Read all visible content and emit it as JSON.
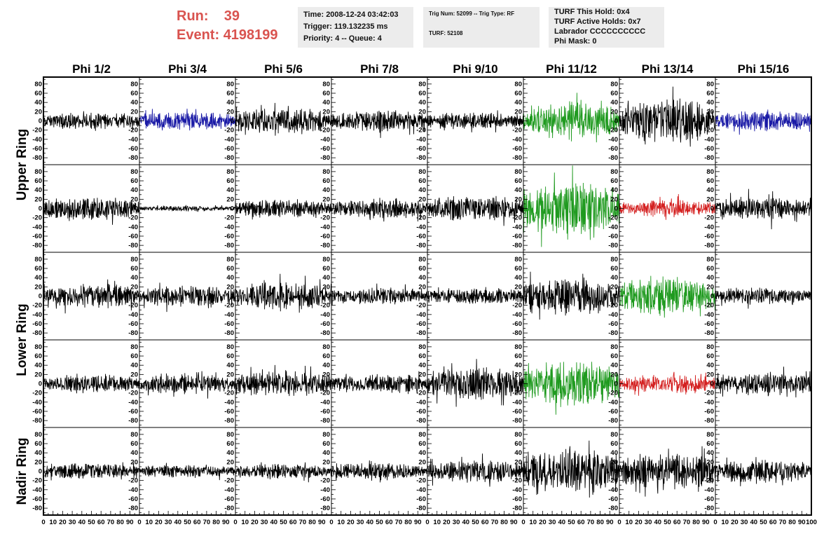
{
  "header": {
    "run_label": "Run:",
    "run_value": "39",
    "event_label": "Event:",
    "event_value": "4198199"
  },
  "info_panels": [
    {
      "lines": [
        "Time: 2008-12-24 03:42:03",
        "Trigger: 119.132235 ms",
        "Priority: 4 -- Queue: 4"
      ]
    },
    {
      "lines": [
        "Trig Num: 52099 -- Trig Type: RF",
        "",
        "TURF: 52108"
      ]
    },
    {
      "lines": [
        "TURF This Hold: 0x4",
        "TURF Active Holds: 0x7",
        "Labrador CCCCCCCCCC",
        "Phi Mask: 0"
      ]
    }
  ],
  "colors": {
    "black": "#000000",
    "blue": "#1a1aa6",
    "green": "#1f9a1f",
    "red": "#d42020"
  },
  "chart_data": {
    "type": "line",
    "columns": [
      "Phi 1/2",
      "Phi 3/4",
      "Phi 5/6",
      "Phi 7/8",
      "Phi 9/10",
      "Phi 11/12",
      "Phi 13/14",
      "Phi 15/16"
    ],
    "row_groups": [
      {
        "label": "Upper Ring",
        "rows": [
          0,
          1
        ]
      },
      {
        "label": "Lower Ring",
        "rows": [
          2,
          3
        ]
      },
      {
        "label": "Nadir Ring",
        "rows": [
          4
        ]
      }
    ],
    "ylim": [
      -95,
      95
    ],
    "xlim": [
      0,
      100
    ],
    "yticks": [
      -80,
      -60,
      -40,
      -20,
      0,
      20,
      40,
      60,
      80
    ],
    "xticks": [
      0,
      10,
      20,
      30,
      40,
      50,
      60,
      70,
      80,
      90,
      100
    ],
    "ytick_labels": [
      "-80",
      "-60",
      "-40",
      "-20",
      "0",
      "20",
      "40",
      "60",
      "80"
    ],
    "xtick_labels": [
      "0",
      "10",
      "20",
      "30",
      "40",
      "50",
      "60",
      "70",
      "80",
      "90",
      "100"
    ],
    "waveforms": [
      {
        "row": 0,
        "col": 0,
        "color": "black",
        "amplitude": 18
      },
      {
        "row": 0,
        "col": 1,
        "color": "blue",
        "amplitude": 20
      },
      {
        "row": 0,
        "col": 2,
        "color": "black",
        "amplitude": 28
      },
      {
        "row": 0,
        "col": 3,
        "color": "black",
        "amplitude": 22
      },
      {
        "row": 0,
        "col": 4,
        "color": "black",
        "amplitude": 18
      },
      {
        "row": 0,
        "col": 5,
        "color": "green",
        "amplitude": 40
      },
      {
        "row": 0,
        "col": 6,
        "color": "black",
        "amplitude": 45
      },
      {
        "row": 0,
        "col": 7,
        "color": "blue",
        "amplitude": 22
      },
      {
        "row": 1,
        "col": 0,
        "color": "black",
        "amplitude": 25
      },
      {
        "row": 1,
        "col": 1,
        "color": "black",
        "amplitude": 6
      },
      {
        "row": 1,
        "col": 2,
        "color": "black",
        "amplitude": 20
      },
      {
        "row": 1,
        "col": 3,
        "color": "black",
        "amplitude": 22
      },
      {
        "row": 1,
        "col": 4,
        "color": "black",
        "amplitude": 28
      },
      {
        "row": 1,
        "col": 5,
        "color": "green",
        "amplitude": 55
      },
      {
        "row": 1,
        "col": 6,
        "color": "red",
        "amplitude": 18
      },
      {
        "row": 1,
        "col": 7,
        "color": "black",
        "amplitude": 25
      },
      {
        "row": 2,
        "col": 0,
        "color": "black",
        "amplitude": 25
      },
      {
        "row": 2,
        "col": 1,
        "color": "black",
        "amplitude": 22
      },
      {
        "row": 2,
        "col": 2,
        "color": "black",
        "amplitude": 30
      },
      {
        "row": 2,
        "col": 3,
        "color": "black",
        "amplitude": 18
      },
      {
        "row": 2,
        "col": 4,
        "color": "black",
        "amplitude": 18
      },
      {
        "row": 2,
        "col": 5,
        "color": "black",
        "amplitude": 40
      },
      {
        "row": 2,
        "col": 6,
        "color": "green",
        "amplitude": 42
      },
      {
        "row": 2,
        "col": 7,
        "color": "black",
        "amplitude": 18
      },
      {
        "row": 3,
        "col": 0,
        "color": "black",
        "amplitude": 20
      },
      {
        "row": 3,
        "col": 1,
        "color": "black",
        "amplitude": 22
      },
      {
        "row": 3,
        "col": 2,
        "color": "black",
        "amplitude": 28
      },
      {
        "row": 3,
        "col": 3,
        "color": "black",
        "amplitude": 20
      },
      {
        "row": 3,
        "col": 4,
        "color": "black",
        "amplitude": 35
      },
      {
        "row": 3,
        "col": 5,
        "color": "green",
        "amplitude": 48
      },
      {
        "row": 3,
        "col": 6,
        "color": "red",
        "amplitude": 20
      },
      {
        "row": 3,
        "col": 7,
        "color": "black",
        "amplitude": 25
      },
      {
        "row": 4,
        "col": 0,
        "color": "black",
        "amplitude": 18
      },
      {
        "row": 4,
        "col": 1,
        "color": "black",
        "amplitude": 14
      },
      {
        "row": 4,
        "col": 2,
        "color": "black",
        "amplitude": 16
      },
      {
        "row": 4,
        "col": 3,
        "color": "black",
        "amplitude": 20
      },
      {
        "row": 4,
        "col": 4,
        "color": "black",
        "amplitude": 25
      },
      {
        "row": 4,
        "col": 5,
        "color": "black",
        "amplitude": 48
      },
      {
        "row": 4,
        "col": 6,
        "color": "black",
        "amplitude": 38
      },
      {
        "row": 4,
        "col": 7,
        "color": "black",
        "amplitude": 25
      }
    ]
  }
}
